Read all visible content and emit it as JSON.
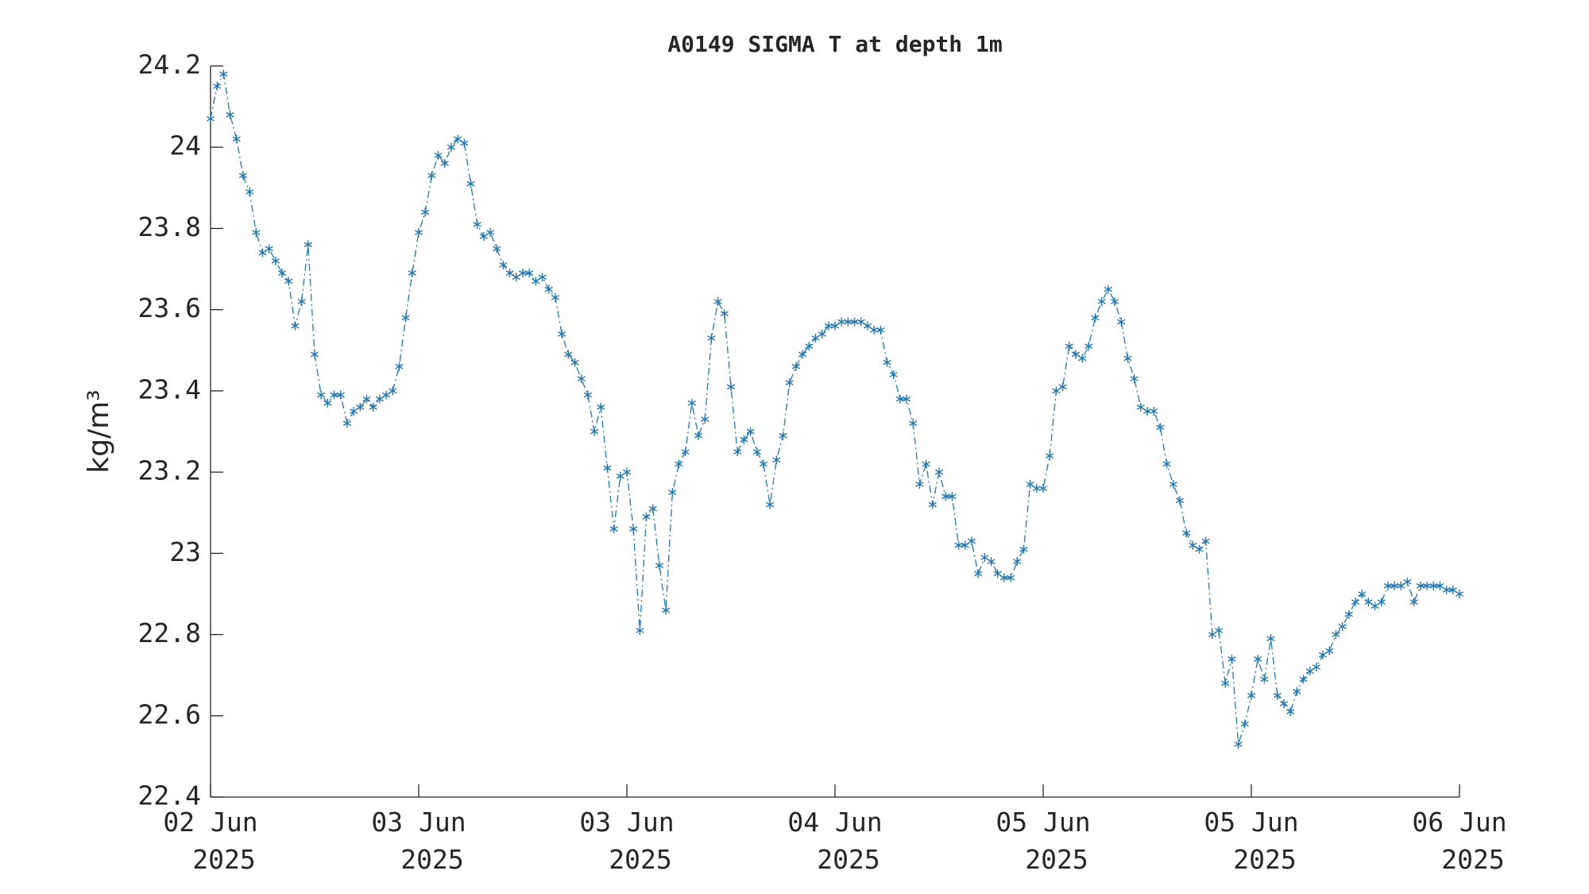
{
  "chart_data": {
    "type": "line",
    "title": "A0149 SIGMA T at depth 1m",
    "ylabel": "kg/m³",
    "color": "#1f77b4",
    "values": [
      24.07,
      24.15,
      24.18,
      24.08,
      24.02,
      23.93,
      23.89,
      23.79,
      23.74,
      23.75,
      23.72,
      23.69,
      23.67,
      23.56,
      23.62,
      23.76,
      23.49,
      23.39,
      23.37,
      23.39,
      23.39,
      23.32,
      23.35,
      23.36,
      23.38,
      23.36,
      23.38,
      23.39,
      23.4,
      23.46,
      23.58,
      23.69,
      23.79,
      23.84,
      23.93,
      23.98,
      23.96,
      24.0,
      24.02,
      24.01,
      23.91,
      23.81,
      23.78,
      23.79,
      23.75,
      23.71,
      23.69,
      23.68,
      23.69,
      23.69,
      23.67,
      23.68,
      23.65,
      23.63,
      23.54,
      23.49,
      23.47,
      23.43,
      23.39,
      23.3,
      23.36,
      23.21,
      23.06,
      23.19,
      23.2,
      23.06,
      22.81,
      23.09,
      23.11,
      22.97,
      22.86,
      23.15,
      23.22,
      23.25,
      23.37,
      23.29,
      23.33,
      23.53,
      23.62,
      23.59,
      23.41,
      23.25,
      23.28,
      23.3,
      23.25,
      23.22,
      23.12,
      23.23,
      23.29,
      23.42,
      23.46,
      23.49,
      23.51,
      23.53,
      23.54,
      23.56,
      23.56,
      23.57,
      23.57,
      23.57,
      23.57,
      23.56,
      23.55,
      23.55,
      23.47,
      23.44,
      23.38,
      23.38,
      23.32,
      23.17,
      23.22,
      23.12,
      23.2,
      23.14,
      23.14,
      23.02,
      23.02,
      23.03,
      22.95,
      22.99,
      22.98,
      22.95,
      22.94,
      22.94,
      22.98,
      23.01,
      23.17,
      23.16,
      23.16,
      23.24,
      23.4,
      23.41,
      23.51,
      23.49,
      23.48,
      23.51,
      23.58,
      23.62,
      23.65,
      23.62,
      23.57,
      23.48,
      23.43,
      23.36,
      23.35,
      23.35,
      23.31,
      23.22,
      23.17,
      23.13,
      23.05,
      23.02,
      23.01,
      23.03,
      22.8,
      22.81,
      22.68,
      22.74,
      22.53,
      22.58,
      22.65,
      22.74,
      22.69,
      22.79,
      22.65,
      22.63,
      22.61,
      22.66,
      22.69,
      22.71,
      22.72,
      22.75,
      22.76,
      22.8,
      22.82,
      22.85,
      22.88,
      22.9,
      22.88,
      22.87,
      22.88,
      22.92,
      22.92,
      22.92,
      22.93,
      22.88,
      22.92,
      22.92,
      22.92,
      22.92,
      22.91,
      22.91,
      22.9
    ],
    "xlim": [
      0,
      192
    ],
    "xticks": [
      {
        "value": 0,
        "label": "02 Jun\n2025"
      },
      {
        "value": 32,
        "label": "03 Jun\n2025"
      },
      {
        "value": 64,
        "label": "03 Jun\n2025"
      },
      {
        "value": 96,
        "label": "04 Jun\n2025"
      },
      {
        "value": 128,
        "label": "05 Jun\n2025"
      },
      {
        "value": 160,
        "label": "05 Jun\n2025"
      },
      {
        "value": 192,
        "label": "06 Jun\n2025"
      }
    ],
    "ylim": [
      22.4,
      24.2
    ],
    "yticks": [
      22.4,
      22.6,
      22.8,
      23,
      23.2,
      23.4,
      23.6,
      23.8,
      24,
      24.2
    ],
    "grid": false
  }
}
